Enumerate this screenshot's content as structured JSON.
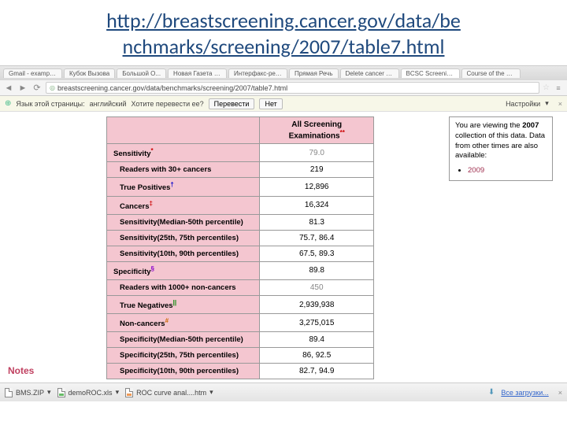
{
  "title_line1": "http://breastscreening.cancer.gov/data/be",
  "title_line2": "nchmarks/screening/2007/table7.html",
  "tabs": [
    "Gmail - examples",
    "Кубок Вызова",
    "Большой О...",
    "Новая Газета | М У...",
    "Интерфакс-религия",
    "Прямая Речь",
    "Delete cancer conc",
    "BCSC Screening Perf",
    "Course of the Brea"
  ],
  "url": "breastscreening.cancer.gov/data/benchmarks/screening/2007/table7.html",
  "translate": {
    "label": "Язык этой страницы:",
    "lang": "английский",
    "ask": "Хотите перевести ее?",
    "yes": "Перевести",
    "no": "Нет",
    "settings": "Настройки"
  },
  "table": {
    "header": "All Screening Examinations",
    "rows": [
      {
        "label": "Sensitivity",
        "sup": "*",
        "supc": "red",
        "val": "79.0",
        "grey": true,
        "indent": false
      },
      {
        "label": "Readers with 30+ cancers",
        "val": "219",
        "indent": true
      },
      {
        "label": "True Positives",
        "sup": "†",
        "supc": "blue",
        "val": "12,896",
        "indent": true
      },
      {
        "label": "Cancers",
        "sup": "‡",
        "supc": "red",
        "val": "16,324",
        "indent": true
      },
      {
        "label": "Sensitivity(Median-50th percentile)",
        "val": "81.3",
        "indent": true
      },
      {
        "label": "Sensitivity(25th, 75th percentiles)",
        "val": "75.7, 86.4",
        "indent": true
      },
      {
        "label": "Sensitivity(10th, 90th percentiles)",
        "val": "67.5, 89.3",
        "indent": true
      },
      {
        "label": "Specificity",
        "sup": "§",
        "supc": "purple",
        "val": "89.8",
        "indent": false
      },
      {
        "label": "Readers with 1000+ non-cancers",
        "val": "450",
        "grey": true,
        "indent": true
      },
      {
        "label": "True Negatives",
        "sup": "||",
        "supc": "green",
        "val": "2,939,938",
        "indent": true
      },
      {
        "label": "Non-cancers",
        "sup": "#",
        "supc": "orange",
        "val": "3,275,015",
        "indent": true
      },
      {
        "label": "Specificity(Median-50th percentile)",
        "val": "89.4",
        "indent": true
      },
      {
        "label": "Specificity(25th, 75th percentiles)",
        "val": "86, 92.5",
        "indent": true
      },
      {
        "label": "Specificity(10th, 90th percentiles)",
        "val": "82.7, 94.9",
        "indent": true
      }
    ]
  },
  "sidebox": {
    "text1": "You are viewing the ",
    "year": "2007",
    "text2": " collection of this data. Data from other times are also available:",
    "link": "2009"
  },
  "notes": "Notes",
  "taskbar": {
    "f1": "BMS.ZIP",
    "f2": "demoROC.xls",
    "f3": "ROC curve anal....htm",
    "all": "Все загрузки..."
  }
}
